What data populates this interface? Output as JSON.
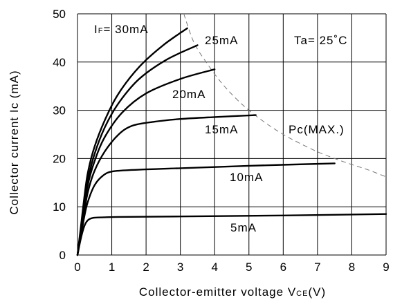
{
  "chart_data": {
    "type": "line",
    "xlabel": {
      "prefix": "Collector-emitter voltage V",
      "sub": "CE",
      "suffix": "(V)"
    },
    "ylabel": "Collector current Ic (mA)",
    "xlim": [
      0,
      9
    ],
    "ylim": [
      0,
      50
    ],
    "xticks": [
      "0",
      "1",
      "2",
      "3",
      "4",
      "5",
      "6",
      "7",
      "8",
      "9"
    ],
    "yticks": [
      "0",
      "10",
      "20",
      "30",
      "40",
      "50"
    ],
    "grid": true,
    "annotations": {
      "if_label": {
        "prefix": "I",
        "sub": "F",
        "suffix": "= 30mA"
      },
      "ta_label": "Ta= 25˚C",
      "pc_label": "Pc(MAX.)"
    },
    "series": [
      {
        "name": "30mA",
        "x": [
          0,
          0.1,
          0.2,
          0.3,
          0.5,
          0.8,
          1.2,
          1.8,
          2.5,
          3.2
        ],
        "y": [
          0,
          6,
          12,
          17,
          22.5,
          28,
          33.5,
          39,
          43.5,
          47
        ]
      },
      {
        "name": "25mA",
        "x": [
          0,
          0.1,
          0.2,
          0.3,
          0.5,
          0.8,
          1.2,
          1.8,
          2.6,
          3.5
        ],
        "y": [
          0,
          5.5,
          11,
          15.5,
          21,
          26.5,
          31.5,
          36.5,
          40.5,
          43.5
        ]
      },
      {
        "name": "20mA",
        "x": [
          0,
          0.1,
          0.2,
          0.3,
          0.5,
          0.8,
          1.3,
          2,
          3,
          4
        ],
        "y": [
          0,
          5,
          10,
          14.5,
          19.5,
          24.5,
          29.5,
          33.5,
          36.5,
          38.5
        ]
      },
      {
        "name": "15mA",
        "x": [
          0,
          0.1,
          0.2,
          0.3,
          0.5,
          0.8,
          1.2,
          1.6,
          2.2,
          3,
          4,
          5.2
        ],
        "y": [
          0,
          4.5,
          9,
          13,
          17.5,
          21.5,
          25,
          26.8,
          27.6,
          28.2,
          28.6,
          29
        ]
      },
      {
        "name": "10mA",
        "x": [
          0,
          0.1,
          0.2,
          0.3,
          0.5,
          0.75,
          1,
          1.5,
          3,
          5,
          7.5
        ],
        "y": [
          0,
          4,
          8,
          11,
          14.5,
          16.5,
          17.3,
          17.6,
          18,
          18.5,
          19
        ]
      },
      {
        "name": "5mA",
        "x": [
          0,
          0.1,
          0.2,
          0.3,
          0.45,
          0.7,
          1.2,
          3,
          6,
          9
        ],
        "y": [
          0,
          3.5,
          6,
          7.2,
          7.7,
          7.8,
          7.9,
          8,
          8.2,
          8.5
        ]
      }
    ],
    "pc_max_curve": {
      "x": [
        3.1,
        3.4,
        3.8,
        4.2,
        4.6,
        5,
        5.5,
        6,
        6.5,
        7,
        7.5,
        8,
        8.5,
        9
      ],
      "y": [
        50,
        44,
        39.5,
        35.7,
        32.6,
        30,
        27.3,
        25,
        23.1,
        21.4,
        20,
        18.75,
        17.6,
        16.2
      ]
    }
  }
}
